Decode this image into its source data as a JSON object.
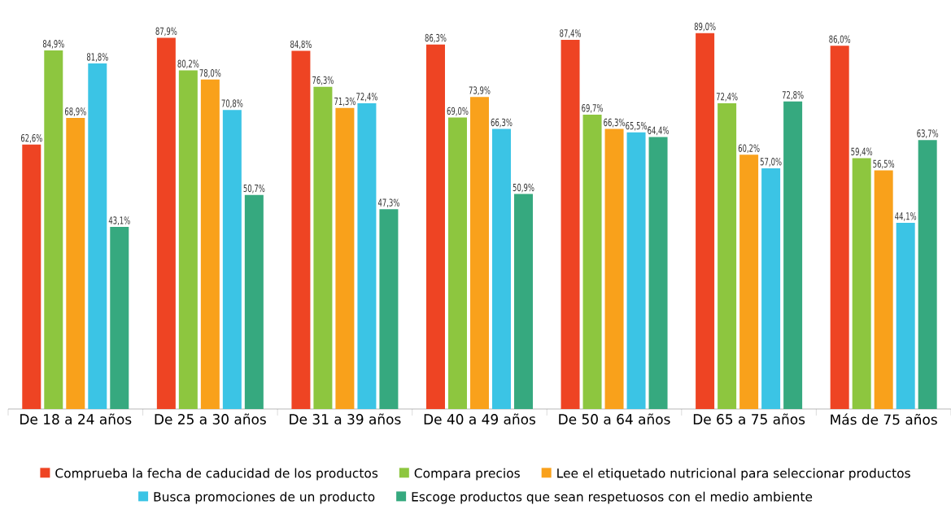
{
  "chart_data": {
    "type": "bar",
    "categories": [
      "De 18 a 24 años",
      "De 25 a 30 años",
      "De 31 a 39 años",
      "De 40 a 49 años",
      "De 50 a 64 años",
      "De 65 a 75 años",
      "Más de 75 años"
    ],
    "series": [
      {
        "name": "Comprueba la fecha de caducidad de los productos",
        "color": "#ee4423",
        "values": [
          62.6,
          87.9,
          84.8,
          86.3,
          87.4,
          89.0,
          86.0
        ],
        "value_labels": [
          "62,6%",
          "87,9%",
          "84,8%",
          "86,3%",
          "87,4%",
          "89,0%",
          "86,0%"
        ]
      },
      {
        "name": "Compara precios",
        "color": "#8dc63f",
        "values": [
          84.9,
          80.2,
          76.3,
          69.0,
          69.7,
          72.4,
          59.4
        ],
        "value_labels": [
          "84,9%",
          "80,2%",
          "76,3%",
          "69,0%",
          "69,7%",
          "72,4%",
          "59,4%"
        ]
      },
      {
        "name": "Lee el etiquetado nutricional para seleccionar productos",
        "color": "#f9a11b",
        "values": [
          68.9,
          78.0,
          71.3,
          73.9,
          66.3,
          60.2,
          56.5
        ],
        "value_labels": [
          "68,9%",
          "78,0%",
          "71,3%",
          "73,9%",
          "66,3%",
          "60,2%",
          "56,5%"
        ]
      },
      {
        "name": "Busca promociones de un producto",
        "color": "#3bc4e5",
        "values": [
          81.8,
          70.8,
          72.4,
          66.3,
          65.5,
          57.0,
          44.1
        ],
        "value_labels": [
          "81,8%",
          "70,8%",
          "72,4%",
          "66,3%",
          "65,5%",
          "57,0%",
          "44,1%"
        ]
      },
      {
        "name": "Escoge productos que sean respetuosos con el medio ambiente",
        "color": "#36a97f",
        "values": [
          43.1,
          50.7,
          47.3,
          50.9,
          64.4,
          72.8,
          63.7
        ],
        "value_labels": [
          "43,1%",
          "50,7%",
          "47,3%",
          "50,9%",
          "64,4%",
          "72,8%",
          "63,7%"
        ]
      }
    ],
    "legend": "bottom"
  }
}
